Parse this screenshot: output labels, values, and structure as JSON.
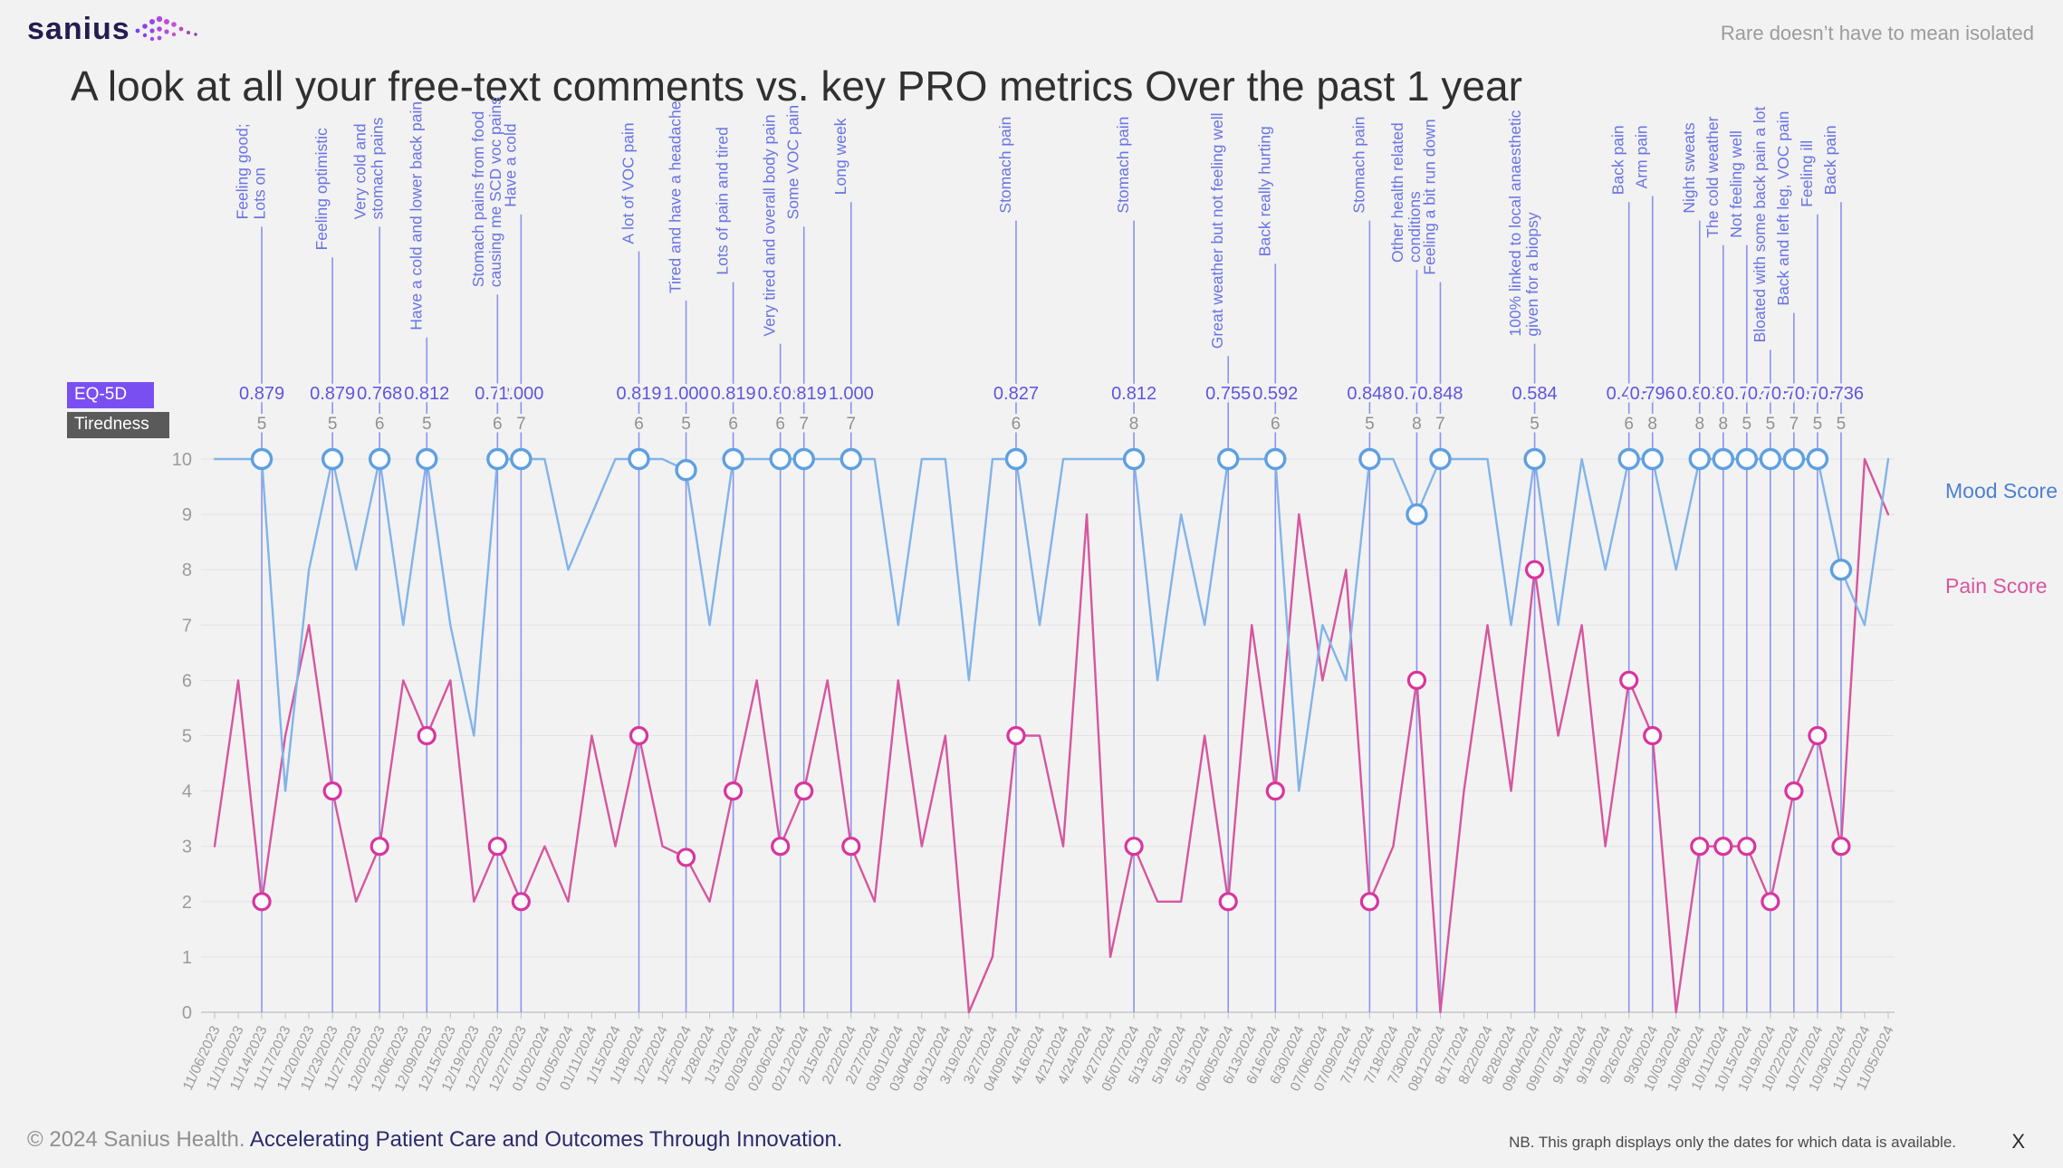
{
  "header": {
    "logo_text": "sanius",
    "tagline": "Rare doesn’t have to mean isolated",
    "title": "A look at all your free-text comments vs. key PRO metrics Over the past 1 year"
  },
  "legend": {
    "eq5d_label": "EQ-5D",
    "eq5d_color": "#7a4ff2",
    "tiredness_label": "Tiredness",
    "tiredness_color": "#5a5a5a"
  },
  "series_labels": {
    "mood": "Mood Score",
    "pain": "Pain Score"
  },
  "footer": {
    "copyright": "© 2024 Sanius Health.",
    "slogan": "Accelerating Patient Care and Outcomes Through Innovation.",
    "note": "NB. This graph displays only the dates for which data is available.",
    "close_label": "X"
  },
  "chart_data": {
    "type": "line",
    "title": "A look at all your free-text comments vs. key PRO metrics Over the past 1 year",
    "xlabel": "",
    "ylabel": "",
    "ylim": [
      0,
      10
    ],
    "yticks": [
      0,
      1,
      2,
      3,
      4,
      5,
      6,
      7,
      8,
      9,
      10
    ],
    "grid": true,
    "legend_position": "left",
    "x": [
      "11/06/2023",
      "11/10/2023",
      "11/14/2023",
      "11/17/2023",
      "11/20/2023",
      "11/23/2023",
      "11/27/2023",
      "12/02/2023",
      "12/06/2023",
      "12/09/2023",
      "12/15/2023",
      "12/19/2023",
      "12/22/2023",
      "12/27/2023",
      "01/02/2024",
      "01/05/2024",
      "01/11/2024",
      "1/15/2024",
      "1/18/2024",
      "1/22/2024",
      "1/25/2024",
      "1/28/2024",
      "1/31/2024",
      "02/03/2024",
      "02/06/2024",
      "02/12/2024",
      "2/15/2024",
      "2/22/2024",
      "2/27/2024",
      "03/01/2024",
      "03/04/2024",
      "03/12/2024",
      "3/19/2024",
      "3/27/2024",
      "04/09/2024",
      "4/16/2024",
      "4/21/2024",
      "4/24/2024",
      "4/27/2024",
      "05/07/2024",
      "5/13/2024",
      "5/19/2024",
      "5/31/2024",
      "06/05/2024",
      "6/13/2024",
      "6/16/2024",
      "6/30/2024",
      "07/06/2024",
      "07/09/2024",
      "7/15/2024",
      "7/18/2024",
      "7/30/2024",
      "08/12/2024",
      "8/17/2024",
      "8/22/2024",
      "8/28/2024",
      "09/04/2024",
      "09/07/2024",
      "9/14/2024",
      "9/19/2024",
      "9/26/2024",
      "9/30/2024",
      "10/03/2024",
      "10/08/2024",
      "10/11/2024",
      "10/15/2024",
      "10/19/2024",
      "10/22/2024",
      "10/27/2024",
      "10/30/2024",
      "11/02/2024",
      "11/05/2024"
    ],
    "series": [
      {
        "name": "Mood Score",
        "color": "#82b4e8",
        "values": [
          10,
          10,
          10,
          4,
          8,
          10,
          8,
          10,
          7,
          10,
          7,
          5,
          10,
          10,
          10,
          8,
          9,
          10,
          10,
          10,
          9.8,
          7,
          10,
          10,
          10,
          10,
          10,
          10,
          10,
          7,
          10,
          10,
          6,
          10,
          10,
          7,
          10,
          10,
          10,
          10,
          6,
          9,
          7,
          10,
          10,
          10,
          4,
          7,
          6,
          10,
          10,
          9,
          10,
          10,
          10,
          7,
          10,
          7,
          10,
          8,
          10,
          10,
          8,
          10,
          10,
          10,
          10,
          10,
          10,
          8,
          7,
          10
        ]
      },
      {
        "name": "Pain Score",
        "color": "#d6569e",
        "values": [
          3,
          6,
          2,
          5,
          7,
          4,
          2,
          3,
          6,
          5,
          6,
          2,
          3,
          2,
          3,
          2,
          5,
          3,
          5,
          3,
          2.8,
          2,
          4,
          6,
          3,
          4,
          6,
          3,
          2,
          6,
          3,
          5,
          0,
          1,
          5,
          5,
          3,
          9,
          1,
          3,
          2,
          2,
          5,
          2,
          7,
          4,
          9,
          6,
          8,
          2,
          3,
          6,
          0,
          4,
          7,
          4,
          8,
          5,
          7,
          3,
          6,
          5,
          0,
          3,
          3,
          3,
          2,
          4,
          5,
          3,
          10,
          9
        ]
      }
    ],
    "annotation_color": "#8a93ea",
    "annotation_text_color": "#6a74e2",
    "eq5d_value_color": "#5f55dd",
    "tiredness_value_color": "#909090",
    "annotations": [
      {
        "date": "11/14/2023",
        "lines": [
          "Feeling good;",
          "Lots on"
        ],
        "eq5d": "0.879",
        "tiredness": "5",
        "mood": 10,
        "pain": 2
      },
      {
        "date": "11/23/2023",
        "lines": [
          "Feeling optimistic"
        ],
        "eq5d": "0.879",
        "tiredness": "5",
        "mood": 10,
        "pain": 4
      },
      {
        "date": "12/02/2023",
        "lines": [
          "Very cold and",
          "stomach pains"
        ],
        "eq5d": "0.768",
        "tiredness": "6",
        "mood": 10,
        "pain": 3
      },
      {
        "date": "12/09/2023",
        "lines": [
          "Have a cold and lower back pain"
        ],
        "eq5d": "0.812",
        "tiredness": "5",
        "mood": 10,
        "pain": 5
      },
      {
        "date": "12/22/2023",
        "lines": [
          "Stomach pains from food",
          "causing me SCD voc pains"
        ],
        "eq5d": "0.733",
        "tiredness": "6",
        "mood": 10,
        "pain": 3
      },
      {
        "date": "12/27/2023",
        "lines": [
          "Have a cold"
        ],
        "eq5d": "1.000",
        "tiredness": "7",
        "mood": 10,
        "pain": 2
      },
      {
        "date": "1/18/2024",
        "lines": [
          "A lot of VOC pain"
        ],
        "eq5d": "0.819",
        "tiredness": "6",
        "mood": 10,
        "pain": 5
      },
      {
        "date": "1/25/2024",
        "lines": [
          "Tired and have a headache"
        ],
        "eq5d": "1.000",
        "tiredness": "5",
        "mood": 9.8,
        "pain": 2.8
      },
      {
        "date": "1/31/2024",
        "lines": [
          "Lots of pain and tired"
        ],
        "eq5d": "0.819",
        "tiredness": "6",
        "mood": 10,
        "pain": 4
      },
      {
        "date": "02/06/2024",
        "lines": [
          "Very tired and overall body pain"
        ],
        "eq5d": "0.879",
        "tiredness": "6",
        "mood": 10,
        "pain": 3
      },
      {
        "date": "02/12/2024",
        "lines": [
          "Some VOC pain"
        ],
        "eq5d": "0.819",
        "tiredness": "7",
        "mood": 10,
        "pain": 4
      },
      {
        "date": "2/22/2024",
        "lines": [
          "Long week"
        ],
        "eq5d": "1.000",
        "tiredness": "7",
        "mood": 10,
        "pain": 3
      },
      {
        "date": "04/09/2024",
        "lines": [
          "Stomach pain"
        ],
        "eq5d": "0.827",
        "tiredness": "6",
        "mood": 10,
        "pain": 5
      },
      {
        "date": "05/07/2024",
        "lines": [
          "Stomach pain"
        ],
        "eq5d": "0.812",
        "tiredness": "8",
        "mood": 10,
        "pain": 3
      },
      {
        "date": "06/05/2024",
        "lines": [
          "Great weather but not feeling well"
        ],
        "eq5d": "0.755",
        "tiredness": null,
        "mood": 10,
        "pain": 2
      },
      {
        "date": "6/16/2024",
        "lines": [
          "Back really hurting"
        ],
        "eq5d": "0.592",
        "tiredness": "6",
        "mood": 10,
        "pain": 4
      },
      {
        "date": "7/15/2024",
        "lines": [
          "Stomach pain"
        ],
        "eq5d": "0.848",
        "tiredness": "5",
        "mood": 10,
        "pain": 2
      },
      {
        "date": "7/30/2024",
        "lines": [
          "Other health related",
          "conditions"
        ],
        "eq5d": "0.714",
        "tiredness": "8",
        "mood": 9,
        "pain": 6
      },
      {
        "date": "08/12/2024",
        "lines": [
          "Feeling a bit run down"
        ],
        "eq5d": "0.848",
        "tiredness": "7",
        "mood": 10,
        "pain": null
      },
      {
        "date": "09/04/2024",
        "lines": [
          "100% linked to local anaesthetic",
          "given for a biopsy"
        ],
        "eq5d": "0.584",
        "tiredness": "5",
        "mood": 10,
        "pain": 8
      },
      {
        "date": "9/26/2024",
        "lines": [
          "Back pain"
        ],
        "eq5d": "0.475",
        "tiredness": "6",
        "mood": 10,
        "pain": 6
      },
      {
        "date": "9/30/2024",
        "lines": [
          "Arm pain"
        ],
        "eq5d": "0.796",
        "tiredness": "8",
        "mood": 10,
        "pain": 5
      },
      {
        "date": "10/08/2024",
        "lines": [
          "Night sweats"
        ],
        "eq5d": "0.837",
        "tiredness": "8",
        "mood": 10,
        "pain": 3
      },
      {
        "date": "10/11/2024",
        "lines": [
          "The cold weather"
        ],
        "eq5d": "0.837",
        "tiredness": "8",
        "mood": 10,
        "pain": 3
      },
      {
        "date": "10/15/2024",
        "lines": [
          "Not feeling well"
        ],
        "eq5d": "0.704",
        "tiredness": "5",
        "mood": 10,
        "pain": 3
      },
      {
        "date": "10/19/2024",
        "lines": [
          "Bloated with some back pain a lot"
        ],
        "eq5d": "0.795",
        "tiredness": "5",
        "mood": 10,
        "pain": 2
      },
      {
        "date": "10/22/2024",
        "lines": [
          "Back and left leg, VOC pain"
        ],
        "eq5d": "0.760",
        "tiredness": "7",
        "mood": 10,
        "pain": 4
      },
      {
        "date": "10/27/2024",
        "lines": [
          "Feeling ill"
        ],
        "eq5d": "0.785",
        "tiredness": "5",
        "mood": 10,
        "pain": 5
      },
      {
        "date": "10/30/2024",
        "lines": [
          "Back pain"
        ],
        "eq5d": "0.736",
        "tiredness": "5",
        "mood": 8,
        "pain": 3
      }
    ]
  }
}
